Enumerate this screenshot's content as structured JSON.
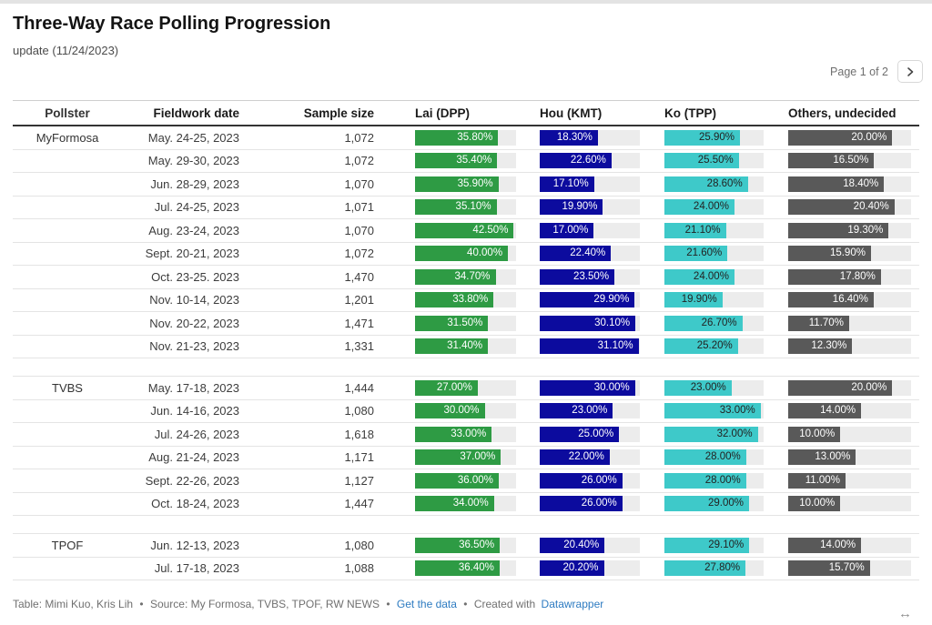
{
  "header": {
    "title": "Three-Way Race Polling Progression",
    "subtitle": "update (11/24/2023)",
    "pagination": {
      "label": "Page 1 of 2"
    }
  },
  "colors": {
    "lai": "#2E9B44",
    "hou": "#0C0B9E",
    "ko": "#3EC9C9",
    "others": "#595959",
    "track": "#ECECEC",
    "link": "#2D7BC1"
  },
  "chart_data": {
    "type": "table",
    "title": "Three-Way Race Polling Progression",
    "subtitle": "update (11/24/2023)",
    "columns": [
      "Pollster",
      "Fieldwork date",
      "Sample size",
      "Lai (DPP)",
      "Hou (KMT)",
      "Ko (TPP)",
      "Others, undecided"
    ],
    "value_unit": "%",
    "value_decimals": 2,
    "scale_max": {
      "lai": 43.5,
      "hou": 31.5,
      "ko": 34.0,
      "others": 23.6
    },
    "groups": [
      {
        "pollster": "MyFormosa",
        "rows": [
          {
            "date": "May. 24-25, 2023",
            "sample": "1,072",
            "lai": 35.8,
            "hou": 18.3,
            "ko": 25.9,
            "others": 20.0
          },
          {
            "date": "May. 29-30, 2023",
            "sample": "1,072",
            "lai": 35.4,
            "hou": 22.6,
            "ko": 25.5,
            "others": 16.5
          },
          {
            "date": "Jun. 28-29, 2023",
            "sample": "1,070",
            "lai": 35.9,
            "hou": 17.1,
            "ko": 28.6,
            "others": 18.4
          },
          {
            "date": "Jul. 24-25, 2023",
            "sample": "1,071",
            "lai": 35.1,
            "hou": 19.9,
            "ko": 24.0,
            "others": 20.4
          },
          {
            "date": "Aug. 23-24, 2023",
            "sample": "1,070",
            "lai": 42.5,
            "hou": 17.0,
            "ko": 21.1,
            "others": 19.3
          },
          {
            "date": "Sept. 20-21, 2023",
            "sample": "1,072",
            "lai": 40.0,
            "hou": 22.4,
            "ko": 21.6,
            "others": 15.9
          },
          {
            "date": "Oct. 23-25. 2023",
            "sample": "1,470",
            "lai": 34.7,
            "hou": 23.5,
            "ko": 24.0,
            "others": 17.8
          },
          {
            "date": "Nov. 10-14, 2023",
            "sample": "1,201",
            "lai": 33.8,
            "hou": 29.9,
            "ko": 19.9,
            "others": 16.4
          },
          {
            "date": "Nov. 20-22, 2023",
            "sample": "1,471",
            "lai": 31.5,
            "hou": 30.1,
            "ko": 26.7,
            "others": 11.7
          },
          {
            "date": "Nov. 21-23, 2023",
            "sample": "1,331",
            "lai": 31.4,
            "hou": 31.1,
            "ko": 25.2,
            "others": 12.3
          }
        ]
      },
      {
        "pollster": "TVBS",
        "rows": [
          {
            "date": "May. 17-18, 2023",
            "sample": "1,444",
            "lai": 27.0,
            "hou": 30.0,
            "ko": 23.0,
            "others": 20.0
          },
          {
            "date": "Jun. 14-16, 2023",
            "sample": "1,080",
            "lai": 30.0,
            "hou": 23.0,
            "ko": 33.0,
            "others": 14.0
          },
          {
            "date": "Jul. 24-26, 2023",
            "sample": "1,618",
            "lai": 33.0,
            "hou": 25.0,
            "ko": 32.0,
            "others": 10.0
          },
          {
            "date": "Aug. 21-24, 2023",
            "sample": "1,171",
            "lai": 37.0,
            "hou": 22.0,
            "ko": 28.0,
            "others": 13.0
          },
          {
            "date": "Sept. 22-26, 2023",
            "sample": "1,127",
            "lai": 36.0,
            "hou": 26.0,
            "ko": 28.0,
            "others": 11.0
          },
          {
            "date": "Oct. 18-24, 2023",
            "sample": "1,447",
            "lai": 34.0,
            "hou": 26.0,
            "ko": 29.0,
            "others": 10.0
          }
        ]
      },
      {
        "pollster": "TPOF",
        "rows": [
          {
            "date": "Jun. 12-13, 2023",
            "sample": "1,080",
            "lai": 36.5,
            "hou": 20.4,
            "ko": 29.1,
            "others": 14.0
          },
          {
            "date": "Jul. 17-18, 2023",
            "sample": "1,088",
            "lai": 36.4,
            "hou": 20.2,
            "ko": 27.8,
            "others": 15.7
          }
        ]
      }
    ]
  },
  "footer": {
    "credit": "Table: Mimi Kuo, Kris Lih",
    "source": "Source: My Formosa, TVBS, TPOF, RW NEWS",
    "get_data": "Get the data",
    "created_with": "Created with",
    "datawrapper": "Datawrapper",
    "separator": "•"
  }
}
